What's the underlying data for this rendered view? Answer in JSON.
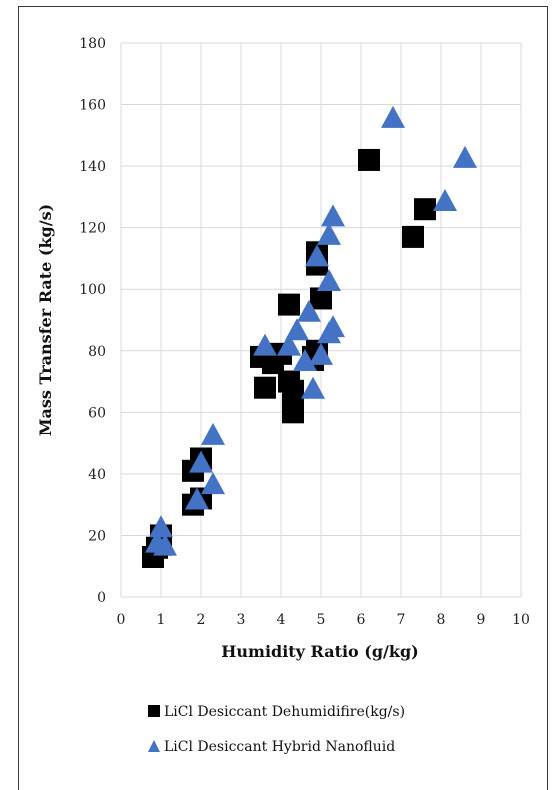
{
  "chart_data": {
    "type": "scatter",
    "xlabel": "Humidity Ratio (g/kg)",
    "ylabel": "Mass Transfer Rate (kg/s)",
    "xlim": [
      0,
      10
    ],
    "ylim": [
      0,
      180
    ],
    "xticks": [
      "0",
      "1",
      "2",
      "3",
      "4",
      "5",
      "6",
      "7",
      "8",
      "9",
      "10"
    ],
    "yticks": [
      "0",
      "20",
      "40",
      "60",
      "80",
      "100",
      "120",
      "140",
      "160",
      "180"
    ],
    "grid": true,
    "legend_position": "bottom",
    "series": [
      {
        "name": "LiCl Desiccant Dehumidifire(kg/s)",
        "marker": "square",
        "color": "#000000",
        "points": [
          [
            0.8,
            13
          ],
          [
            0.9,
            16
          ],
          [
            1.0,
            20
          ],
          [
            1.0,
            17
          ],
          [
            1.8,
            30
          ],
          [
            2.0,
            32
          ],
          [
            1.8,
            41
          ],
          [
            2.0,
            45
          ],
          [
            3.5,
            78
          ],
          [
            3.6,
            68
          ],
          [
            3.8,
            76
          ],
          [
            4.0,
            79
          ],
          [
            4.2,
            95
          ],
          [
            4.2,
            70
          ],
          [
            4.3,
            67
          ],
          [
            4.3,
            60
          ],
          [
            4.8,
            77
          ],
          [
            4.8,
            78
          ],
          [
            4.9,
            108
          ],
          [
            4.9,
            112
          ],
          [
            4.9,
            80
          ],
          [
            5.0,
            97
          ],
          [
            6.2,
            142
          ],
          [
            7.3,
            117
          ],
          [
            7.6,
            126
          ]
        ]
      },
      {
        "name": "LiCl Desiccant Hybrid Nanofluid",
        "marker": "triangle",
        "color": "#4472C4",
        "points": [
          [
            0.9,
            18
          ],
          [
            1.0,
            23
          ],
          [
            1.1,
            17
          ],
          [
            1.9,
            32
          ],
          [
            2.0,
            44
          ],
          [
            2.3,
            37
          ],
          [
            2.3,
            53
          ],
          [
            3.6,
            82
          ],
          [
            4.2,
            82
          ],
          [
            4.4,
            87
          ],
          [
            4.6,
            77
          ],
          [
            4.7,
            93
          ],
          [
            4.8,
            68
          ],
          [
            4.9,
            111
          ],
          [
            5.0,
            79
          ],
          [
            5.2,
            86
          ],
          [
            5.2,
            118
          ],
          [
            5.2,
            103
          ],
          [
            5.3,
            124
          ],
          [
            5.3,
            88
          ],
          [
            6.8,
            156
          ],
          [
            8.1,
            129
          ],
          [
            8.6,
            143
          ]
        ]
      }
    ]
  }
}
